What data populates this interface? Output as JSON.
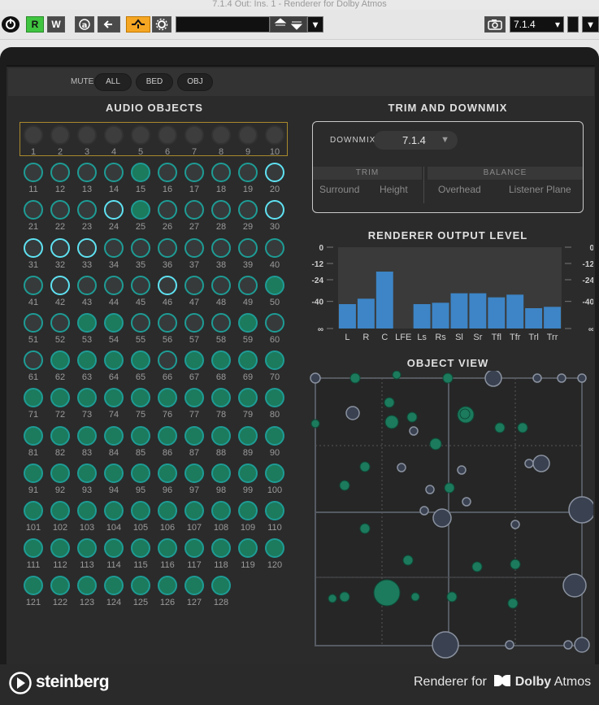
{
  "window": {
    "title": "7.1.4 Out: Ins. 1 - Renderer for Dolby Atmos"
  },
  "toolbar": {
    "r_label": "R",
    "w_label": "W",
    "preset_value": "",
    "format_value": "7.1.4",
    "colors": {
      "read": "#3fc43f",
      "bypass": "#f5a623"
    }
  },
  "mute": {
    "label": "MUTE",
    "buttons": [
      "ALL",
      "BED",
      "OBJ"
    ]
  },
  "audio_objects": {
    "title": "AUDIO OBJECTS",
    "labels": [
      "1",
      "2",
      "3",
      "4",
      "5",
      "6",
      "7",
      "8",
      "9",
      "10",
      "11",
      "12",
      "13",
      "14",
      "15",
      "16",
      "17",
      "18",
      "19",
      "20",
      "21",
      "22",
      "23",
      "24",
      "25",
      "26",
      "27",
      "28",
      "29",
      "30",
      "31",
      "32",
      "33",
      "34",
      "35",
      "36",
      "37",
      "38",
      "39",
      "40",
      "41",
      "42",
      "43",
      "44",
      "45",
      "46",
      "47",
      "48",
      "49",
      "50",
      "51",
      "52",
      "53",
      "54",
      "55",
      "56",
      "57",
      "58",
      "59",
      "60",
      "61",
      "62",
      "63",
      "64",
      "65",
      "66",
      "67",
      "68",
      "69",
      "70",
      "71",
      "72",
      "73",
      "74",
      "75",
      "76",
      "77",
      "78",
      "79",
      "80",
      "81",
      "82",
      "83",
      "84",
      "85",
      "86",
      "87",
      "88",
      "89",
      "90",
      "91",
      "92",
      "93",
      "94",
      "95",
      "96",
      "97",
      "98",
      "99",
      "100",
      "101",
      "102",
      "103",
      "104",
      "105",
      "106",
      "107",
      "108",
      "109",
      "110",
      "111",
      "112",
      "113",
      "114",
      "115",
      "116",
      "117",
      "118",
      "119",
      "120",
      "121",
      "122",
      "123",
      "124",
      "125",
      "126",
      "127",
      "128"
    ],
    "active": [
      15,
      24,
      25,
      46,
      50,
      53,
      54,
      59,
      62,
      63,
      64,
      65,
      67,
      68,
      69,
      70,
      71,
      72,
      73,
      74,
      75,
      76,
      77,
      78,
      79,
      80,
      81,
      82,
      83,
      84,
      85,
      86,
      87,
      88,
      89,
      90,
      91,
      92,
      93,
      94,
      95,
      96,
      97,
      98,
      99,
      100,
      101,
      102,
      103,
      104,
      105,
      106,
      107,
      108,
      109,
      110,
      111,
      112,
      113,
      114,
      115,
      116,
      117,
      118,
      119,
      120,
      121,
      122,
      123,
      124,
      125,
      126,
      127,
      128
    ],
    "highlighted": [
      20,
      24,
      30,
      31,
      32,
      33,
      42,
      46
    ]
  },
  "trim_downmix": {
    "title": "TRIM AND DOWNMIX",
    "downmix_label": "DOWNMIX",
    "downmix_value": "7.1.4",
    "trim_header": "TRIM",
    "balance_header": "BALANCE",
    "trim_cols": [
      "Surround",
      "Height"
    ],
    "balance_cols": [
      "Overhead",
      "Listener Plane"
    ]
  },
  "renderer_output": {
    "title": "RENDERER OUTPUT LEVEL",
    "scale": [
      "0",
      "-12",
      "-24",
      "-40",
      "∞"
    ],
    "channels": [
      "L",
      "R",
      "C",
      "LFE",
      "Ls",
      "Rs",
      "Sl",
      "Sr",
      "Tfl",
      "Tfr",
      "Trl",
      "Trr"
    ],
    "levels_db": [
      -42,
      -38,
      -18,
      -60,
      -42,
      -41,
      -34,
      -34,
      -37,
      -35,
      -45,
      -44
    ],
    "bar_color": "#3d85c6"
  },
  "object_view": {
    "title": "OBJECT VIEW",
    "colors": {
      "object": "#1c7a5d",
      "bed": "#3a4150"
    }
  },
  "footer": {
    "brand": "steinberg",
    "product_prefix": "Renderer for",
    "dolby_word": "Dolby",
    "atmos_word": "Atmos"
  }
}
